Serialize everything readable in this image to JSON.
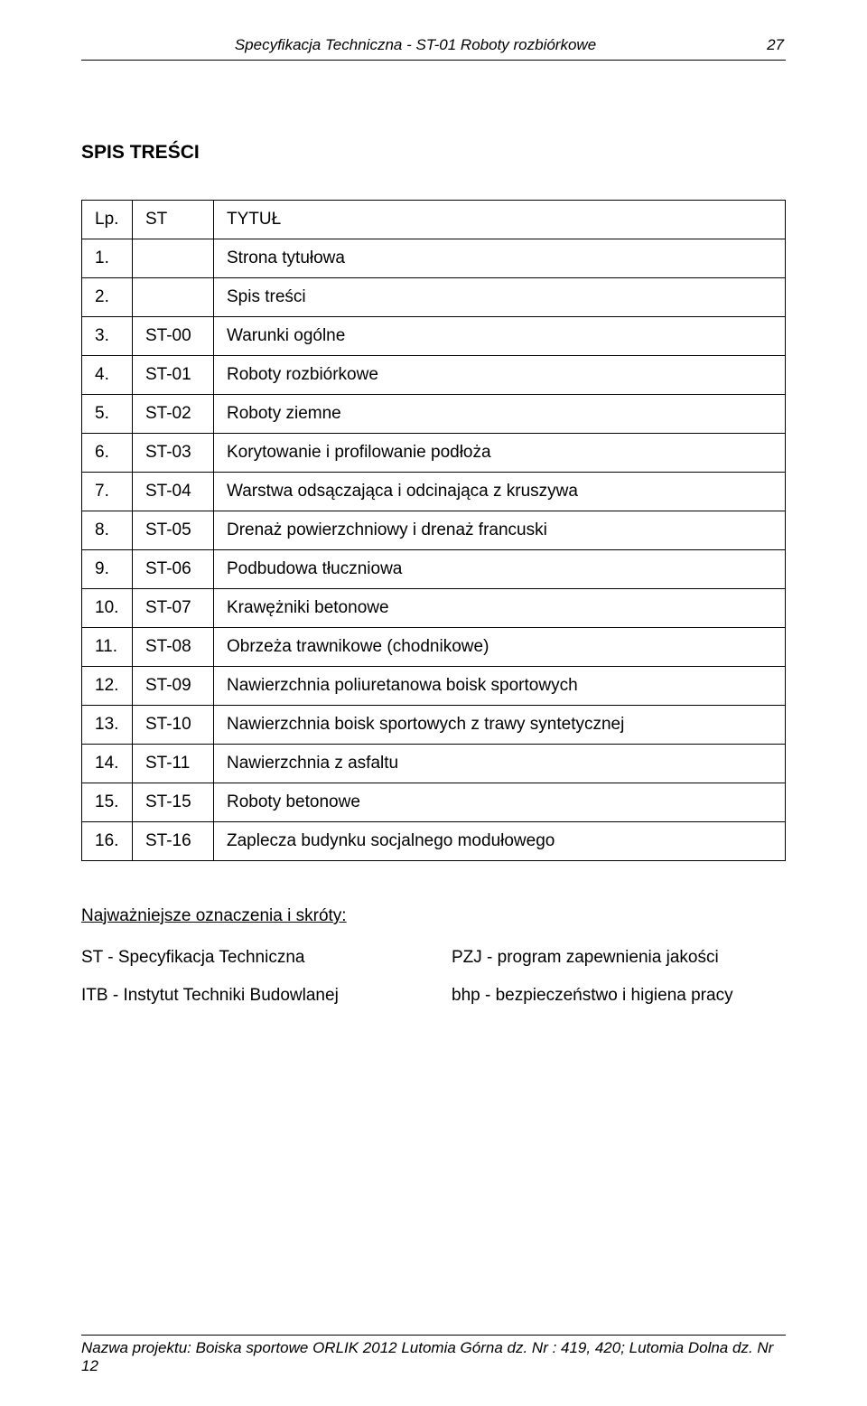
{
  "header": {
    "title": "Specyfikacja Techniczna - ST-01 Roboty rozbiórkowe",
    "page_number": "27"
  },
  "section_title": "SPIS TREŚCI",
  "table": {
    "header": {
      "lp": "Lp.",
      "st": "ST",
      "title": "TYTUŁ"
    },
    "rows": [
      {
        "num": "1.",
        "st": "",
        "title": "Strona tytułowa"
      },
      {
        "num": "2.",
        "st": "",
        "title": "Spis treści"
      },
      {
        "num": "3.",
        "st": "ST-00",
        "title": "Warunki ogólne"
      },
      {
        "num": "4.",
        "st": "ST-01",
        "title": "Roboty rozbiórkowe"
      },
      {
        "num": "5.",
        "st": "ST-02",
        "title": "Roboty ziemne"
      },
      {
        "num": "6.",
        "st": "ST-03",
        "title": "Korytowanie i profilowanie podłoża"
      },
      {
        "num": "7.",
        "st": "ST-04",
        "title": "Warstwa odsączająca i odcinająca z kruszywa"
      },
      {
        "num": "8.",
        "st": "ST-05",
        "title": "Drenaż powierzchniowy i drenaż francuski"
      },
      {
        "num": "9.",
        "st": "ST-06",
        "title": "Podbudowa tłuczniowa"
      },
      {
        "num": "10.",
        "st": "ST-07",
        "title": "Krawężniki betonowe"
      },
      {
        "num": "11.",
        "st": "ST-08",
        "title": "Obrzeża trawnikowe (chodnikowe)"
      },
      {
        "num": "12.",
        "st": "ST-09",
        "title": "Nawierzchnia poliuretanowa boisk sportowych"
      },
      {
        "num": "13.",
        "st": "ST-10",
        "title": "Nawierzchnia boisk sportowych z trawy syntetycznej"
      },
      {
        "num": "14.",
        "st": "ST-11",
        "title": "Nawierzchnia z asfaltu"
      },
      {
        "num": "15.",
        "st": "ST-15",
        "title": "Roboty betonowe"
      },
      {
        "num": "16.",
        "st": "ST-16",
        "title": "Zaplecza budynku socjalnego modułowego"
      }
    ]
  },
  "abbr": {
    "heading": "Najważniejsze oznaczenia i skróty:",
    "items": {
      "st": "ST - Specyfikacja Techniczna",
      "pzj": "PZJ - program zapewnienia jakości",
      "itb": "ITB - Instytut Techniki Budowlanej",
      "bhp": "bhp - bezpieczeństwo i higiena pracy"
    }
  },
  "footer": {
    "text": "Nazwa projektu: Boiska sportowe ORLIK 2012 Lutomia Górna dz. Nr : 419, 420; Lutomia Dolna dz. Nr 12"
  }
}
